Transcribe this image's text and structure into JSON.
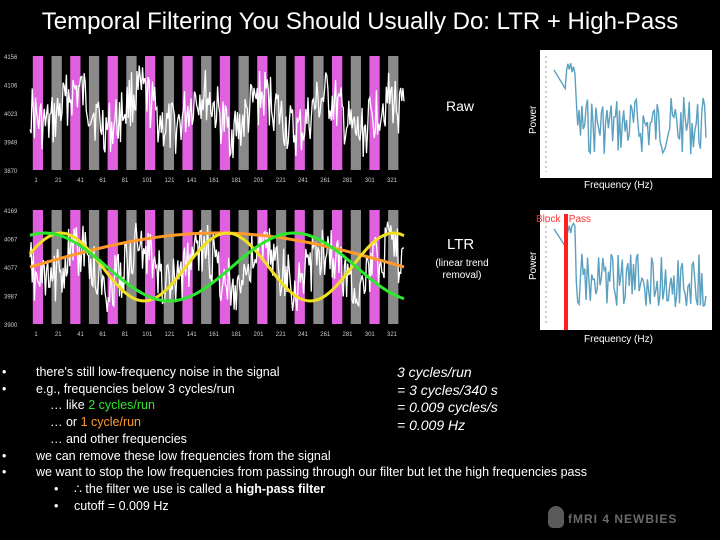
{
  "title": "Temporal Filtering You Should Usually Do: LTR + High-Pass",
  "top_panel": {
    "y_ticks": [
      "4156",
      "4106",
      "4023",
      "3949",
      "3870"
    ],
    "x_ticks": [
      "1",
      "21",
      "41",
      "61",
      "81",
      "101",
      "121",
      "141",
      "161",
      "181",
      "201",
      "221",
      "241",
      "261",
      "281",
      "301",
      "321"
    ],
    "label": "Raw",
    "power_label": "Power",
    "freq_label": "Frequency (Hz)"
  },
  "bottom_panel": {
    "y_ticks": [
      "4169",
      "4067",
      "4077",
      "3987",
      "3900"
    ],
    "x_ticks": [
      "1",
      "21",
      "41",
      "61",
      "81",
      "101",
      "121",
      "141",
      "161",
      "181",
      "201",
      "221",
      "241",
      "261",
      "281",
      "301",
      "321"
    ],
    "label": "LTR",
    "sub_label_line1": "(linear trend",
    "sub_label_line2": "removal)",
    "power_label": "Power",
    "freq_label": "Frequency (Hz)",
    "block_pass_label": "Block",
    "block_pass_label2": "Pass"
  },
  "bullets": {
    "b1": "there's still low-frequency noise in the signal",
    "b2": "e.g., frequencies below 3 cycles/run",
    "b2a_pre": "… like ",
    "b2a_hl": "2 cycles/run",
    "b2b_pre": "… or ",
    "b2b_hl": "1 cycle/run",
    "b2c": "… and other frequencies",
    "b3": "we can remove these low frequencies from the signal",
    "b4": "we want to stop the low frequencies from passing through our filter but let the high frequencies pass",
    "b4a_pre": "∴ the filter we use is called a ",
    "b4a_bold": "high-pass filter",
    "b4b": "cutoff = 0.009 Hz",
    "bullet_char": "•"
  },
  "calc": {
    "l1": "3 cycles/run",
    "l2": "= 3 cycles/340 s",
    "l3": "= 0.009 cycles/s",
    "l4": "= 0.009 Hz"
  },
  "logo": "fMRI 4 NEWBIES",
  "colors": {
    "stripe_pink": "#e060e0",
    "stripe_grey": "#8a8a8a",
    "signal": "#ffffff",
    "spectrum": "#5aa0c0",
    "green_curve": "#2ee82e",
    "yellow_curve": "#f0e020",
    "orange_curve": "#ff9a2a",
    "cutoff": "#ff2020"
  }
}
